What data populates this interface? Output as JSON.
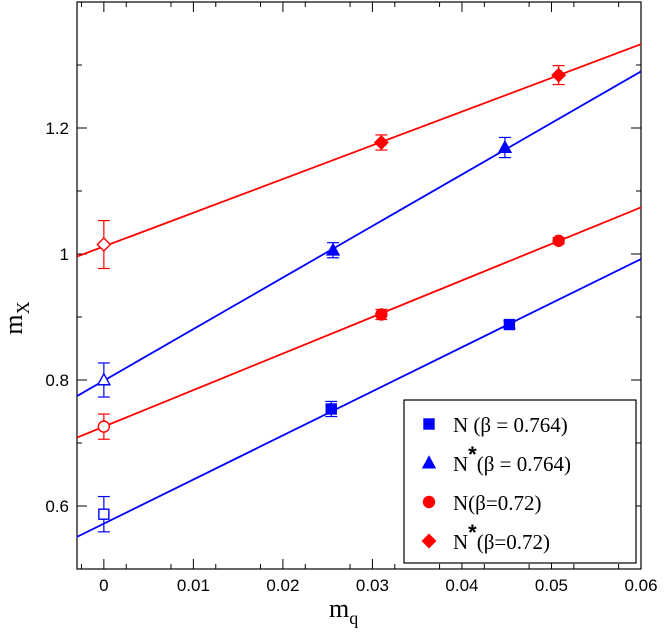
{
  "chart_data": {
    "type": "scatter",
    "xlabel": {
      "main": "m",
      "sub": "q"
    },
    "ylabel": {
      "main": "m",
      "sub": "X"
    },
    "xlim": [
      -0.003,
      0.06
    ],
    "ylim": [
      0.5,
      1.4
    ],
    "xticks": [
      0,
      0.01,
      0.02,
      0.03,
      0.04,
      0.05,
      0.06
    ],
    "xtick_labels": [
      "0",
      "0.01",
      "0.02",
      "0.03",
      "0.04",
      "0.05",
      "0.06"
    ],
    "yticks": [
      0.6,
      0.8,
      1.0,
      1.2
    ],
    "ytick_labels": [
      "0.6",
      "0.8",
      "1",
      "1.2"
    ],
    "legend_position": "bottom-right",
    "series": [
      {
        "legend": {
          "base": "N",
          "star": false,
          "suffix": " (β = 0.764)"
        },
        "color": "#0000ff",
        "marker": "square",
        "points": [
          {
            "x": 0.0254,
            "y": 0.754,
            "err": 0.012,
            "filled": true
          },
          {
            "x": 0.0453,
            "y": 0.888,
            "err": 0.006,
            "filled": true
          },
          {
            "x": 0.0,
            "y": 0.587,
            "err": 0.028,
            "filled": false
          }
        ],
        "fit": {
          "intercept": 0.572,
          "slope": 7.0
        }
      },
      {
        "legend": {
          "base": "N",
          "star": true,
          "suffix": "(β = 0.764)"
        },
        "color": "#0000ff",
        "marker": "triangle",
        "points": [
          {
            "x": 0.0256,
            "y": 1.006,
            "err": 0.012,
            "filled": true
          },
          {
            "x": 0.0448,
            "y": 1.169,
            "err": 0.016,
            "filled": true
          },
          {
            "x": 0.0,
            "y": 0.8,
            "err": 0.027,
            "filled": false
          }
        ],
        "fit": {
          "intercept": 0.799,
          "slope": 8.18
        }
      },
      {
        "legend": {
          "base": "N",
          "star": false,
          "suffix": "(β=0.72)"
        },
        "color": "#ff0000",
        "marker": "circle",
        "points": [
          {
            "x": 0.031,
            "y": 0.904,
            "err": 0.008,
            "filled": true
          },
          {
            "x": 0.0508,
            "y": 1.021,
            "err": 0.005,
            "filled": true
          },
          {
            "x": 0.0,
            "y": 0.726,
            "err": 0.02,
            "filled": false
          }
        ],
        "fit": {
          "intercept": 0.726,
          "slope": 5.8
        }
      },
      {
        "legend": {
          "base": "N",
          "star": true,
          "suffix": "(β=0.72)"
        },
        "color": "#ff0000",
        "marker": "diamond",
        "points": [
          {
            "x": 0.031,
            "y": 1.177,
            "err": 0.012,
            "filled": true
          },
          {
            "x": 0.0508,
            "y": 1.284,
            "err": 0.015,
            "filled": true
          },
          {
            "x": 0.0,
            "y": 1.015,
            "err": 0.038,
            "filled": false
          }
        ],
        "fit": {
          "intercept": 1.012,
          "slope": 5.35
        }
      }
    ]
  }
}
